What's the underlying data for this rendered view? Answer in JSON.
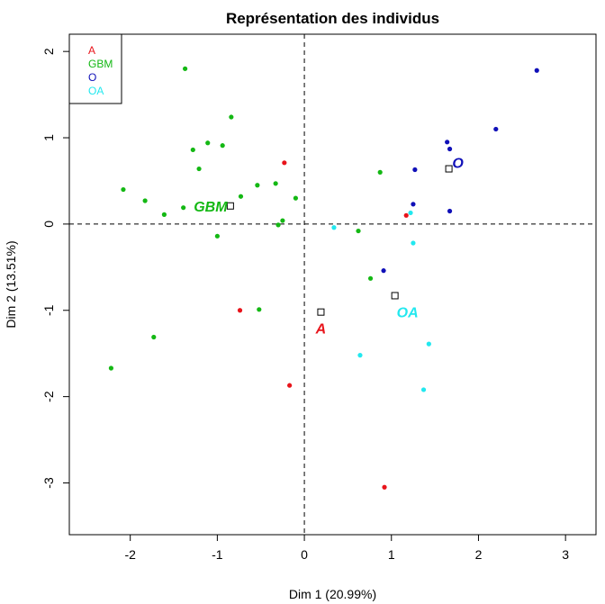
{
  "chart_data": {
    "type": "scatter",
    "title": "Représentation des individus",
    "xlabel": "Dim 1 (20.99%)",
    "ylabel": "Dim 2 (13.51%)",
    "xlim": [
      -2.7,
      3.35
    ],
    "ylim": [
      -3.6,
      2.2
    ],
    "xticks": [
      -2,
      -1,
      0,
      1,
      2,
      3
    ],
    "yticks": [
      -3,
      -2,
      -1,
      0,
      1,
      2
    ],
    "reference_lines": {
      "x": 0,
      "y": 0,
      "style": "dashed"
    },
    "legend": {
      "position": "top-left",
      "entries": [
        "A",
        "GBM",
        "O",
        "OA"
      ]
    },
    "groups": [
      {
        "name": "A",
        "color": "#e8141b",
        "points": [
          [
            -0.23,
            0.71
          ],
          [
            1.17,
            0.1
          ],
          [
            -0.74,
            -1.0
          ],
          [
            -0.17,
            -1.87
          ],
          [
            0.92,
            -3.05
          ]
        ],
        "centroid": {
          "x": 0.19,
          "y": -1.02,
          "label": "A"
        }
      },
      {
        "name": "GBM",
        "color": "#14b814",
        "points": [
          [
            -1.37,
            1.8
          ],
          [
            -0.84,
            1.24
          ],
          [
            -1.28,
            0.86
          ],
          [
            -1.11,
            0.94
          ],
          [
            -0.94,
            0.91
          ],
          [
            -1.21,
            0.64
          ],
          [
            -2.08,
            0.4
          ],
          [
            -1.83,
            0.27
          ],
          [
            -1.61,
            0.11
          ],
          [
            -1.39,
            0.19
          ],
          [
            -0.73,
            0.32
          ],
          [
            -0.54,
            0.45
          ],
          [
            -0.33,
            0.47
          ],
          [
            -0.25,
            0.04
          ],
          [
            -0.3,
            -0.01
          ],
          [
            -0.1,
            0.3
          ],
          [
            -1.0,
            -0.14
          ],
          [
            0.87,
            0.6
          ],
          [
            0.62,
            -0.08
          ],
          [
            0.76,
            -0.63
          ],
          [
            -0.52,
            -0.99
          ],
          [
            -1.73,
            -1.31
          ],
          [
            -2.22,
            -1.67
          ]
        ],
        "centroid": {
          "x": -0.85,
          "y": 0.21,
          "label": "GBM"
        }
      },
      {
        "name": "O",
        "color": "#1010b8",
        "points": [
          [
            2.67,
            1.78
          ],
          [
            2.2,
            1.1
          ],
          [
            1.64,
            0.95
          ],
          [
            1.67,
            0.87
          ],
          [
            1.27,
            0.63
          ],
          [
            1.25,
            0.23
          ],
          [
            1.67,
            0.15
          ],
          [
            0.91,
            -0.54
          ]
        ],
        "centroid": {
          "x": 1.66,
          "y": 0.64,
          "label": "O"
        }
      },
      {
        "name": "OA",
        "color": "#22e8ef",
        "points": [
          [
            0.34,
            -0.04
          ],
          [
            1.22,
            0.13
          ],
          [
            1.25,
            -0.22
          ],
          [
            1.43,
            -1.39
          ],
          [
            0.64,
            -1.52
          ],
          [
            1.37,
            -1.92
          ]
        ],
        "centroid": {
          "x": 1.04,
          "y": -0.83,
          "label": "OA"
        }
      }
    ]
  }
}
